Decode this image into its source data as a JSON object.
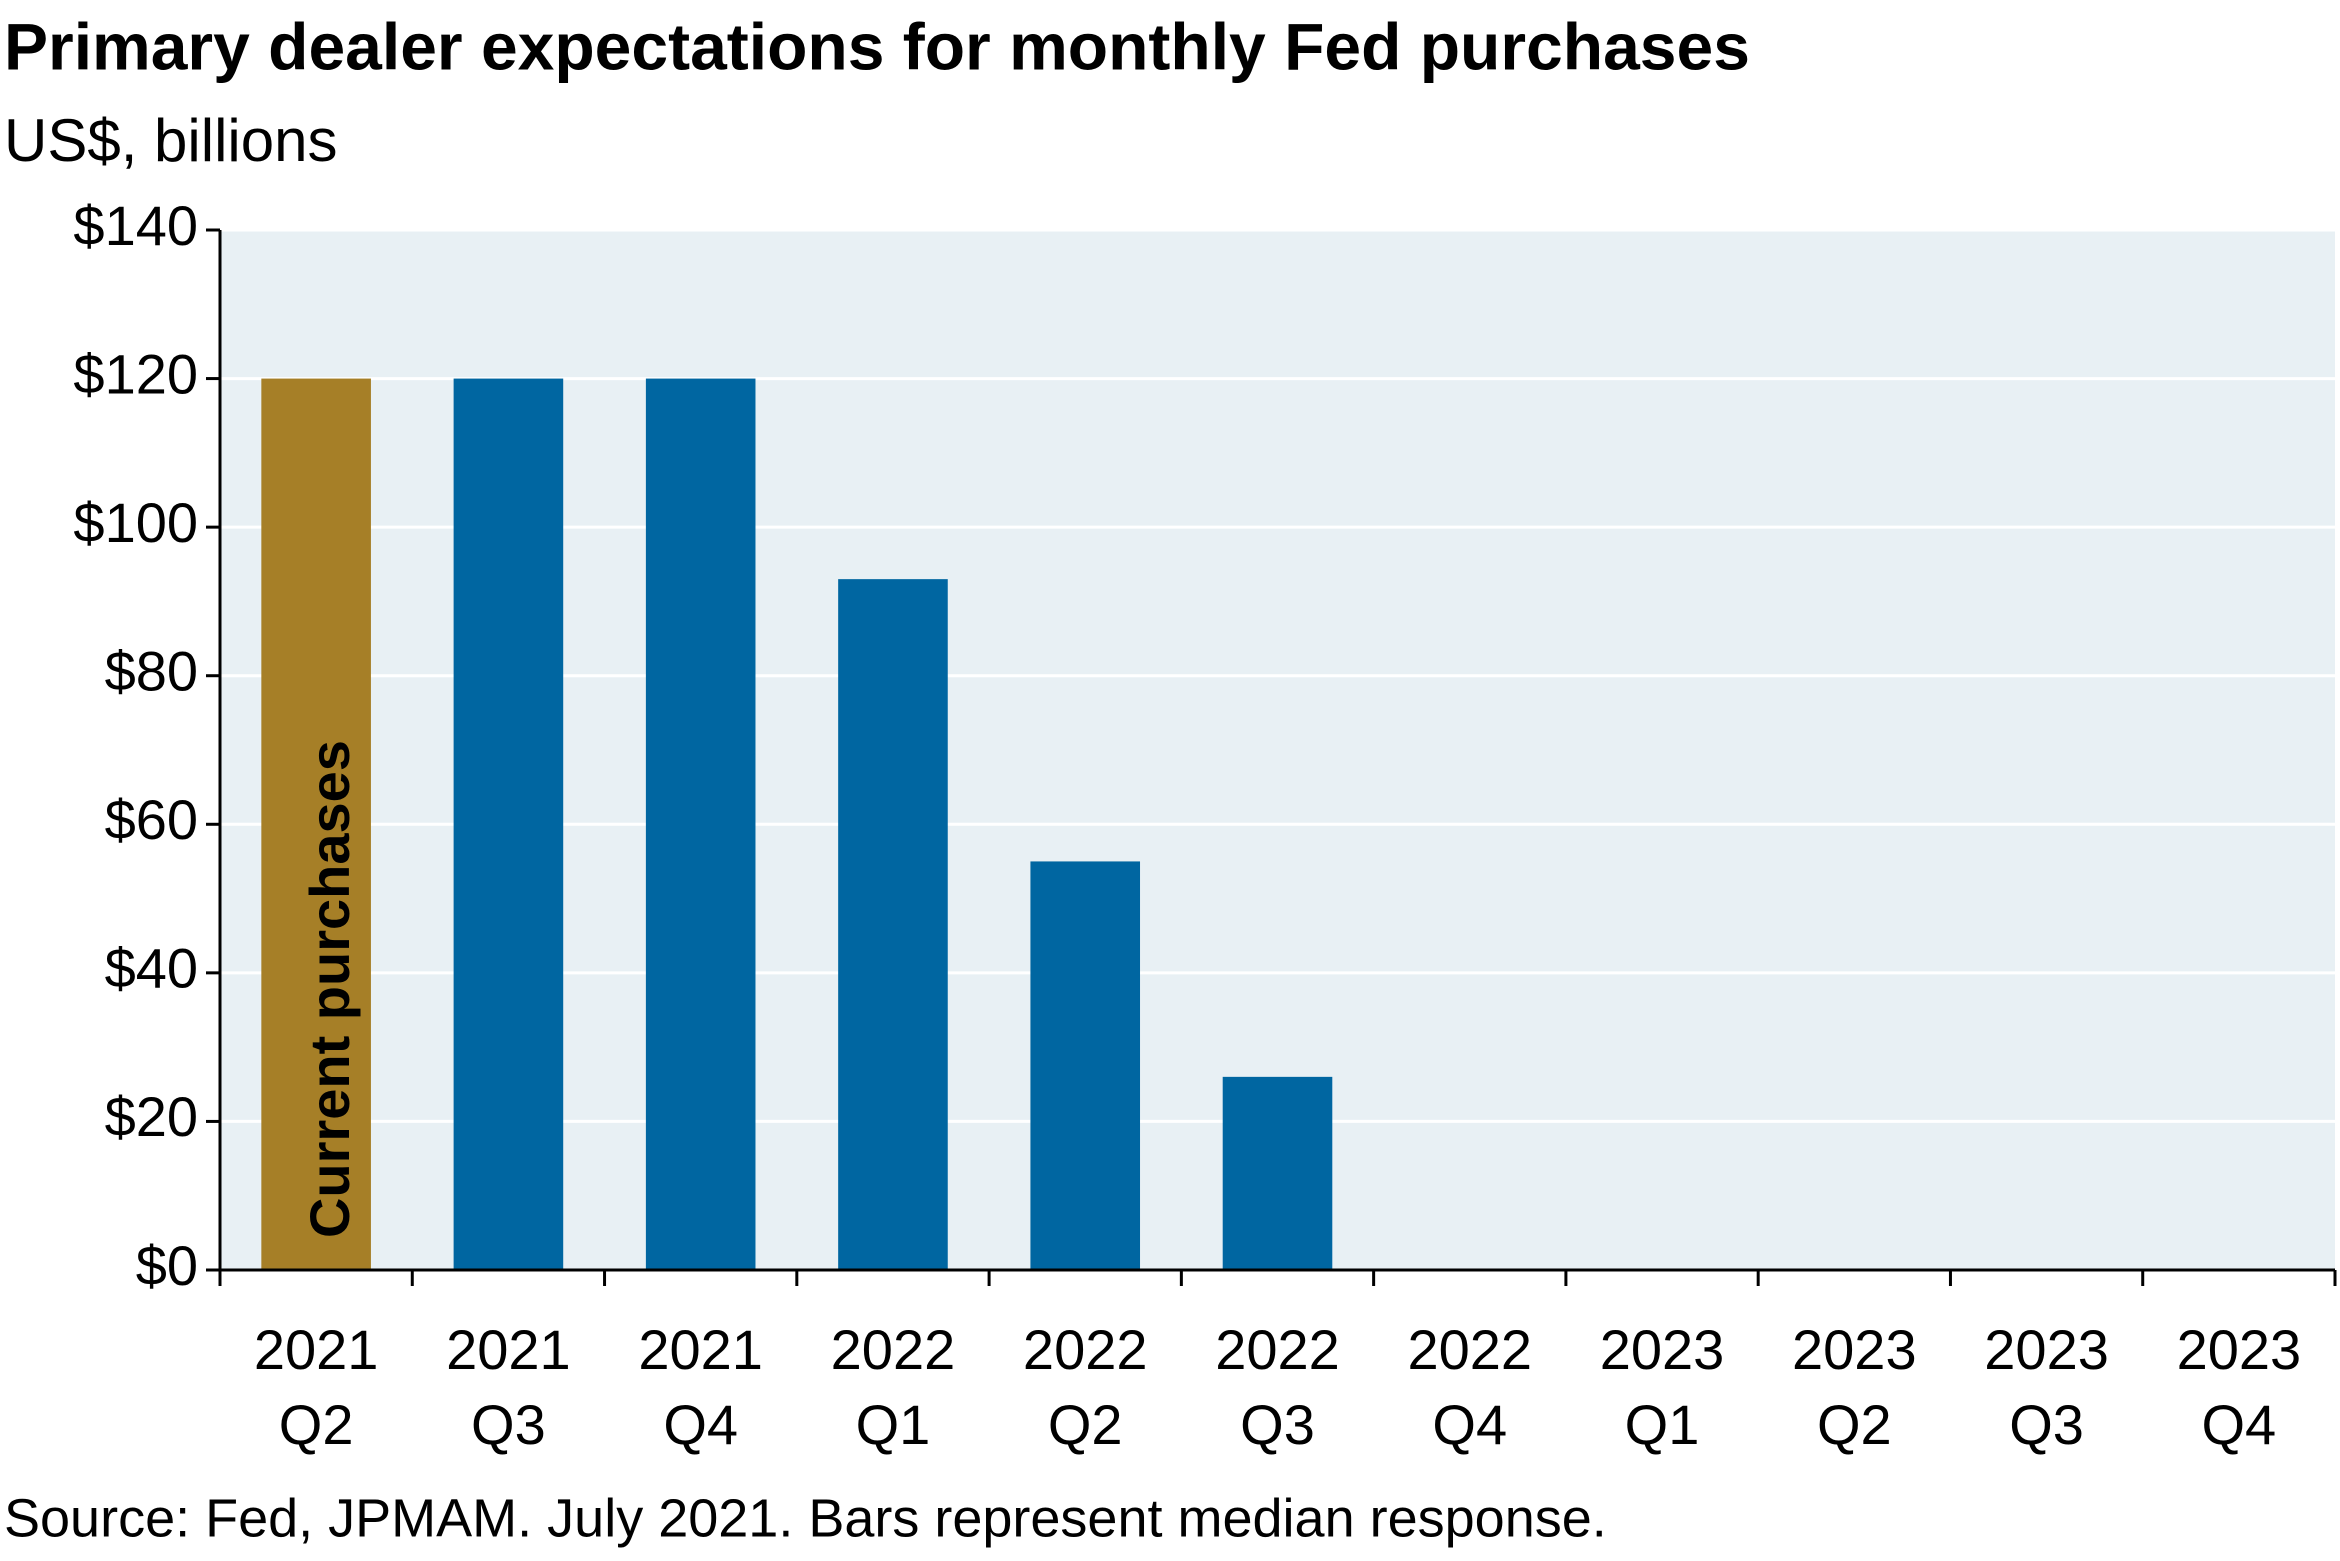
{
  "chart_data": {
    "type": "bar",
    "title": "Primary dealer expectations for monthly Fed purchases",
    "subtitle": "US$, billions",
    "categories": [
      "2021 Q2",
      "2021 Q3",
      "2021 Q4",
      "2022 Q1",
      "2022 Q2",
      "2022 Q3",
      "2022 Q4",
      "2023 Q1",
      "2023 Q2",
      "2023 Q3",
      "2023 Q4"
    ],
    "values": [
      120,
      120,
      120,
      93,
      55,
      26,
      0,
      0,
      0,
      0,
      0
    ],
    "colors": [
      "#a67f27",
      "#0066a1",
      "#0066a1",
      "#0066a1",
      "#0066a1",
      "#0066a1",
      "#0066a1",
      "#0066a1",
      "#0066a1",
      "#0066a1",
      "#0066a1"
    ],
    "annotation": "Current purchases",
    "ylim": [
      0,
      140
    ],
    "yticks": [
      {
        "value": 0,
        "label": "$0"
      },
      {
        "value": 20,
        "label": "$20"
      },
      {
        "value": 40,
        "label": "$40"
      },
      {
        "value": 60,
        "label": "$60"
      },
      {
        "value": 80,
        "label": "$80"
      },
      {
        "value": 100,
        "label": "$100"
      },
      {
        "value": 120,
        "label": "$120"
      },
      {
        "value": 140,
        "label": "$140"
      }
    ],
    "grid": true,
    "source": "Source: Fed, JPMAM. July 2021. Bars represent median response."
  }
}
